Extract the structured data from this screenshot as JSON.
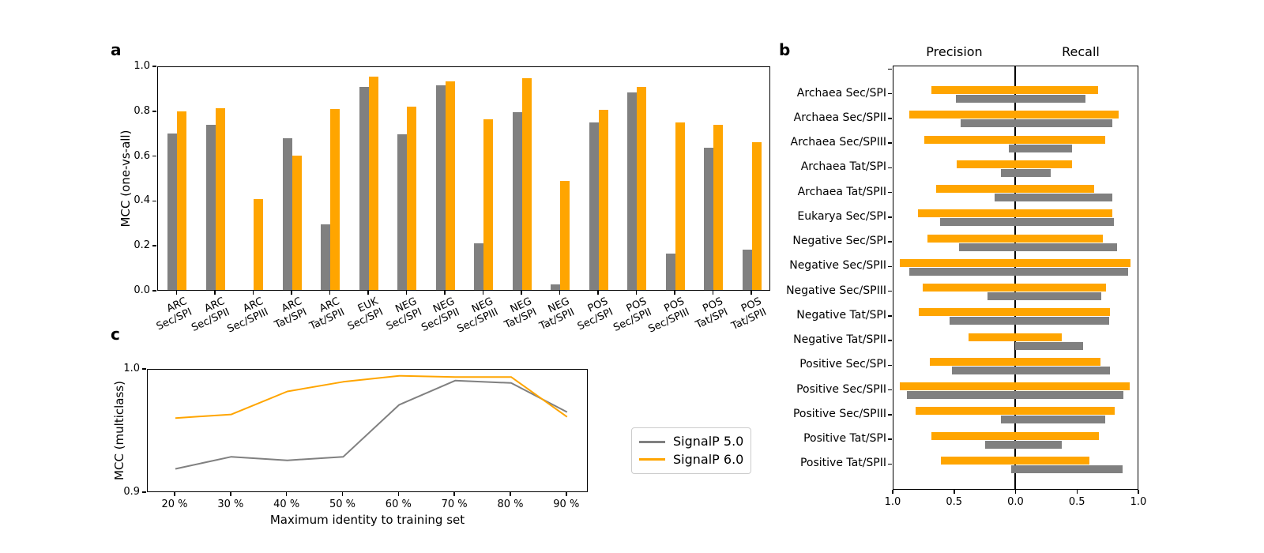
{
  "figure": {
    "panel_letters": {
      "a": "a",
      "b": "b",
      "c": "c"
    }
  },
  "colors": {
    "signalp5_gray": "#808080",
    "signalp6_orange": "#FFA500",
    "axis_black": "#000000",
    "legend_border": "#cccccc"
  },
  "legend": {
    "items": [
      {
        "label": "SignalP 5.0",
        "color": "#808080"
      },
      {
        "label": "SignalP 6.0",
        "color": "#FFA500"
      }
    ]
  },
  "chart_data": [
    {
      "panel": "a",
      "type": "bar",
      "ylabel": "MCC (one-vs-all)",
      "ylim": [
        0.0,
        1.0
      ],
      "ytick_labels": [
        "0.0",
        "0.2",
        "0.4",
        "0.6",
        "0.8",
        "1.0"
      ],
      "yticks": [
        0.0,
        0.2,
        0.4,
        0.6,
        0.8,
        1.0
      ],
      "grid": false,
      "categories": [
        "ARC Sec/SPI",
        "ARC Sec/SPII",
        "ARC Sec/SPIII",
        "ARC Tat/SPI",
        "ARC Tat/SPII",
        "EUK Sec/SPI",
        "NEG Sec/SPI",
        "NEG Sec/SPII",
        "NEG Sec/SPIII",
        "NEG Tat/SPI",
        "NEG Tat/SPII",
        "POS Sec/SPI",
        "POS Sec/SPII",
        "POS Sec/SPIII",
        "POS Tat/SPI",
        "POS Tat/SPII"
      ],
      "category_lines": [
        [
          "ARC",
          "Sec/SPI"
        ],
        [
          "ARC",
          "Sec/SPII"
        ],
        [
          "ARC",
          "Sec/SPIII"
        ],
        [
          "ARC",
          "Tat/SPI"
        ],
        [
          "ARC",
          "Tat/SPII"
        ],
        [
          "EUK",
          "Sec/SPI"
        ],
        [
          "NEG",
          "Sec/SPI"
        ],
        [
          "NEG",
          "Sec/SPII"
        ],
        [
          "NEG",
          "Sec/SPIII"
        ],
        [
          "NEG",
          "Tat/SPI"
        ],
        [
          "NEG",
          "Tat/SPII"
        ],
        [
          "POS",
          "Sec/SPI"
        ],
        [
          "POS",
          "Sec/SPII"
        ],
        [
          "POS",
          "Sec/SPIII"
        ],
        [
          "POS",
          "Tat/SPI"
        ],
        [
          "POS",
          "Tat/SPII"
        ]
      ],
      "series": [
        {
          "name": "SignalP 5.0",
          "color": "#808080",
          "values": [
            0.705,
            0.745,
            0.0,
            0.685,
            0.295,
            0.915,
            0.7,
            0.92,
            0.21,
            0.8,
            0.025,
            0.755,
            0.89,
            0.165,
            0.64,
            0.18
          ]
        },
        {
          "name": "SignalP 6.0",
          "color": "#FFA500",
          "values": [
            0.805,
            0.82,
            0.41,
            0.605,
            0.815,
            0.96,
            0.825,
            0.94,
            0.77,
            0.955,
            0.49,
            0.81,
            0.915,
            0.755,
            0.745,
            0.665
          ]
        }
      ]
    },
    {
      "panel": "b",
      "type": "diverging-barh",
      "column_titles": [
        "Precision",
        "Recall"
      ],
      "xlim": [
        -1.0,
        1.0
      ],
      "xtick_labels": [
        "1.0",
        "0.5",
        "0.0",
        "0.5",
        "1.0"
      ],
      "categories": [
        "Archaea Sec/SPI",
        "Archaea Sec/SPII",
        "Archaea Sec/SPIII",
        "Archaea Tat/SPI",
        "Archaea Tat/SPII",
        "Eukarya Sec/SPI",
        "Negative Sec/SPI",
        "Negative Sec/SPII",
        "Negative Sec/SPIII",
        "Negative Tat/SPI",
        "Negative Tat/SPII",
        "Positive Sec/SPI",
        "Positive Sec/SPII",
        "Positive Sec/SPIII",
        "Positive Tat/SPI",
        "Positive Tat/SPII"
      ],
      "series": [
        {
          "name": "SignalP 6.0",
          "color": "#FFA500",
          "precision": [
            0.69,
            0.87,
            0.75,
            0.48,
            0.65,
            0.8,
            0.72,
            0.95,
            0.76,
            0.79,
            0.38,
            0.7,
            0.95,
            0.82,
            0.69,
            0.61
          ],
          "recall": [
            0.68,
            0.85,
            0.74,
            0.47,
            0.65,
            0.8,
            0.72,
            0.95,
            0.75,
            0.78,
            0.38,
            0.7,
            0.94,
            0.82,
            0.69,
            0.61
          ]
        },
        {
          "name": "SignalP 5.0",
          "color": "#808080",
          "precision": [
            0.49,
            0.45,
            0.05,
            0.12,
            0.17,
            0.62,
            0.46,
            0.87,
            0.23,
            0.54,
            0.0,
            0.52,
            0.89,
            0.12,
            0.25,
            0.03
          ],
          "recall": [
            0.58,
            0.8,
            0.47,
            0.29,
            0.8,
            0.81,
            0.84,
            0.93,
            0.71,
            0.77,
            0.56,
            0.78,
            0.89,
            0.74,
            0.38,
            0.88
          ]
        }
      ]
    },
    {
      "panel": "c",
      "type": "line",
      "xlabel": "Maximum identity to training set",
      "ylabel": "MCC (multiclass)",
      "x_categories": [
        "20 %",
        "30 %",
        "40 %",
        "50 %",
        "60 %",
        "70 %",
        "80 %",
        "90 %"
      ],
      "ylim": [
        0.9,
        1.0
      ],
      "ytick_labels": [
        "0.9",
        "1.0"
      ],
      "grid": false,
      "legend_position": "outside-right",
      "series": [
        {
          "name": "SignalP 5.0",
          "color": "#808080",
          "values": [
            0.918,
            0.928,
            0.925,
            0.928,
            0.971,
            0.991,
            0.989,
            0.965
          ]
        },
        {
          "name": "SignalP 6.0",
          "color": "#FFA500",
          "values": [
            0.96,
            0.963,
            0.982,
            0.99,
            0.995,
            0.994,
            0.994,
            0.961
          ]
        }
      ]
    }
  ]
}
